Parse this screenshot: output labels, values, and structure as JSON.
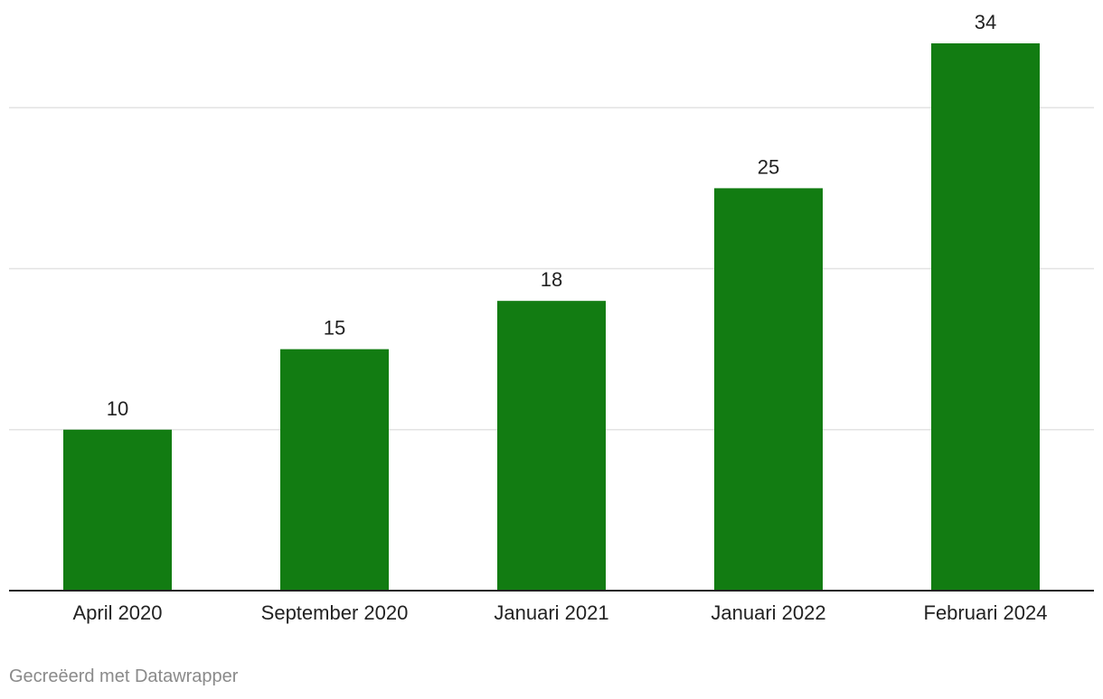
{
  "chart_data": {
    "type": "bar",
    "categories": [
      "April 2020",
      "September 2020",
      "Januari 2021",
      "Januari 2022",
      "Februari 2024"
    ],
    "values": [
      10,
      15,
      18,
      25,
      34
    ],
    "ylim": [
      0,
      34
    ],
    "gridlines": [
      10,
      20,
      30
    ],
    "grid": true,
    "bar_color": "#127c12",
    "show_value_labels": true
  },
  "footer": {
    "credit": "Gecreëerd met Datawrapper"
  }
}
